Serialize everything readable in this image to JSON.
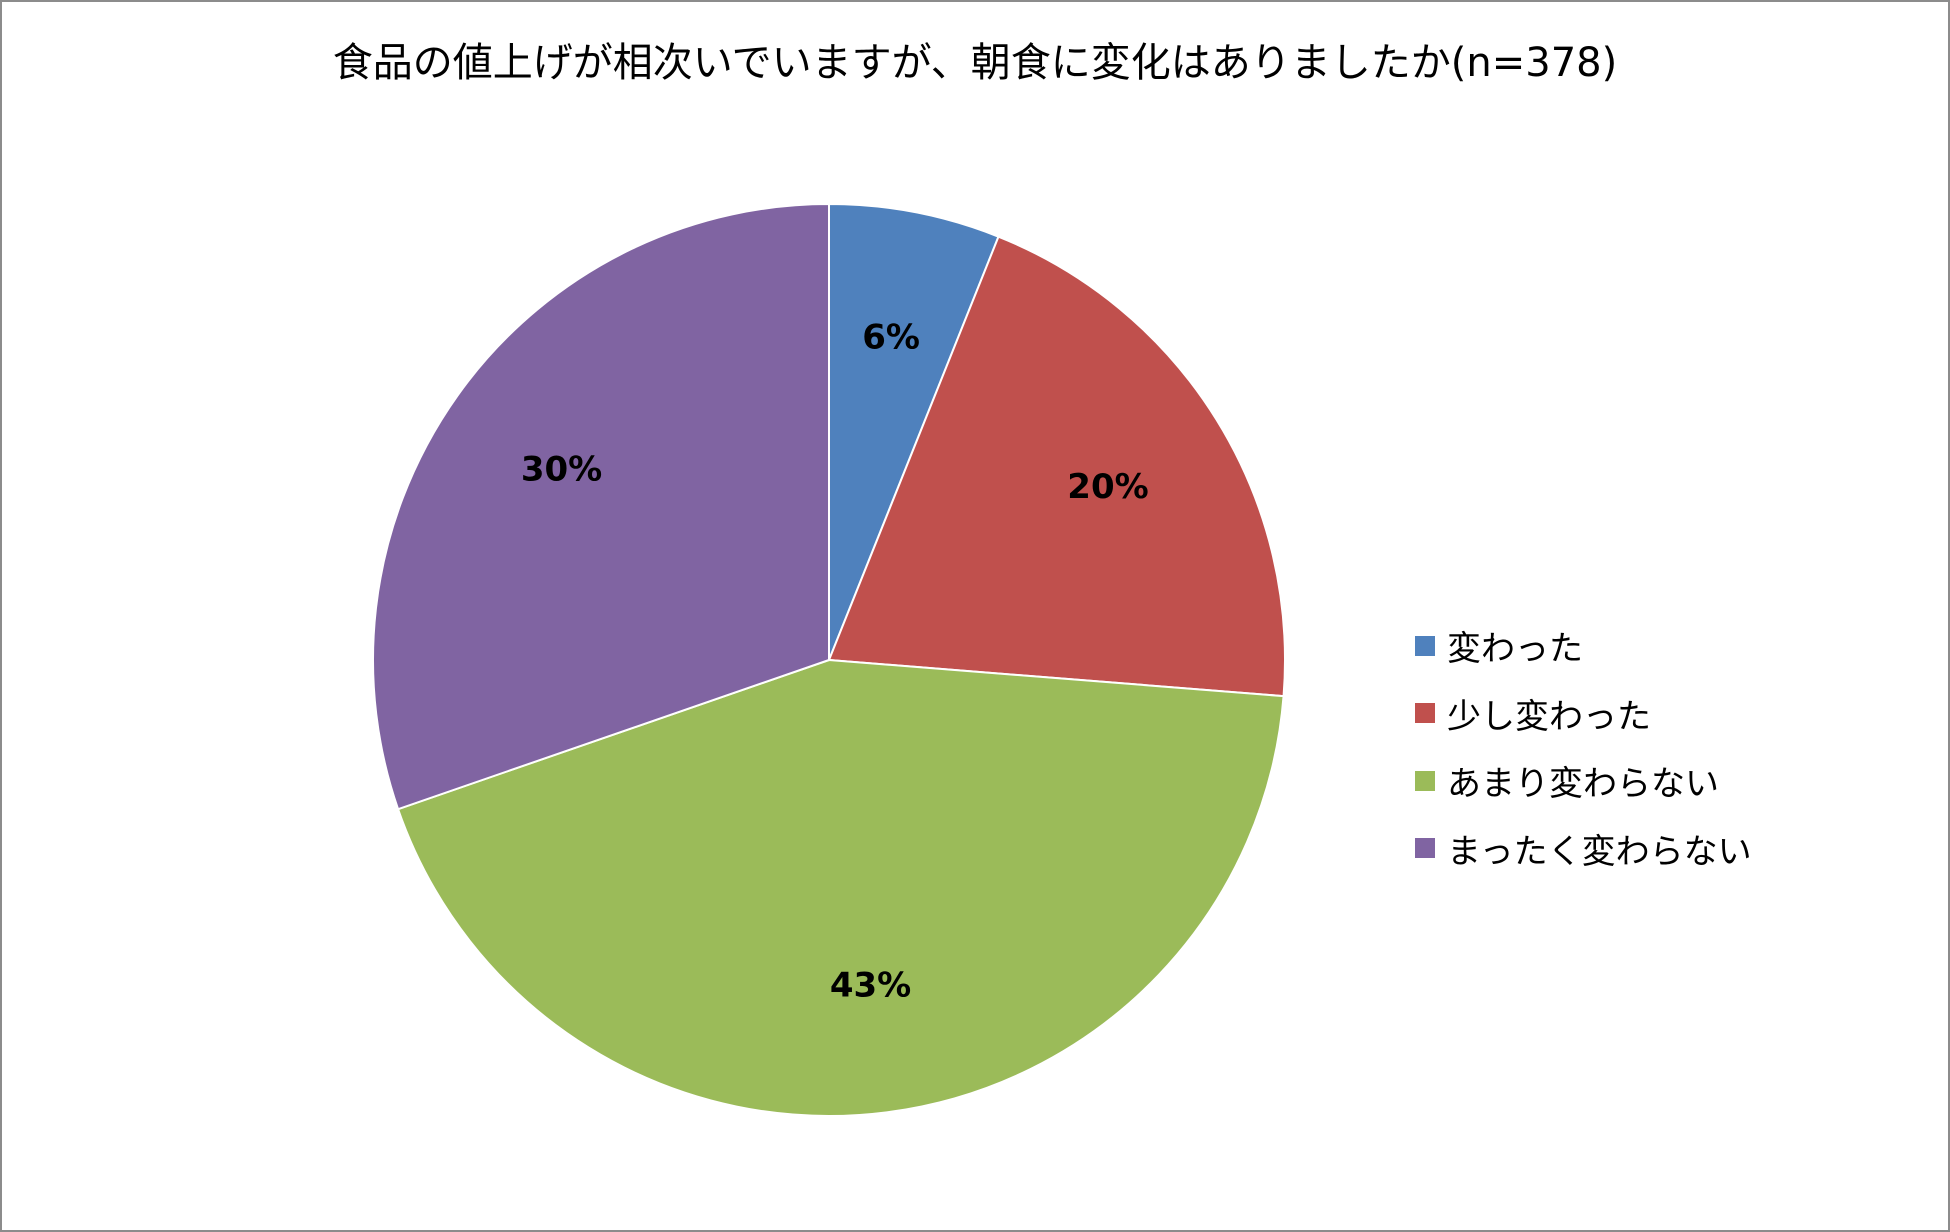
{
  "chart_data": {
    "type": "pie",
    "title": "食品の値上げが相次いでいますが、朝食に変化はありましたか(n=378)",
    "categories": [
      "変わった",
      "少し変わった",
      "あまり変わらない",
      "まったく変わらない"
    ],
    "values": [
      6,
      20,
      43,
      30
    ],
    "labels": [
      "6%",
      "20%",
      "43%",
      "30%"
    ],
    "colors": [
      "#4f81bd",
      "#c0504d",
      "#9bbb59",
      "#8064a2"
    ],
    "legend_position": "right"
  }
}
